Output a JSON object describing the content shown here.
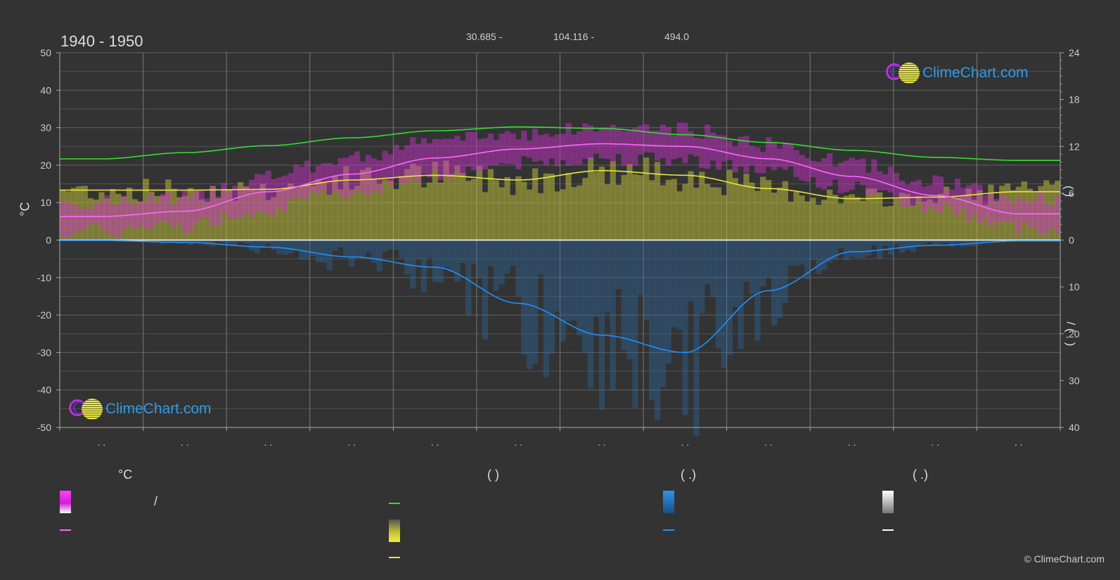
{
  "header": {
    "title": "1940 - 1950",
    "lat": "30.685 -",
    "lon": "104.116 -",
    "elevation": "494.0"
  },
  "brand": {
    "logo_text": "ClimeChart.com",
    "copyright": "© ClimeChart.com"
  },
  "axes": {
    "left_unit": "°C",
    "right_top_label": "(     )",
    "right_bottom_label": "/    (  .  )"
  },
  "legend": {
    "temp_header": "°C",
    "sun_header": "(          )",
    "rain_header": "(    .)",
    "snow_header": "(    .)",
    "slash": "/"
  },
  "colors": {
    "daylight": "#33dd33",
    "sunshine": "#e8e832",
    "temp_mean": "#ff66ff",
    "temp_band": "#e020e0",
    "precip": "#1e90ff",
    "snow": "#ffffff",
    "background": "#333333",
    "grid": "#666666",
    "brand_blue": "#2f9be9"
  },
  "chart_data": {
    "type": "line",
    "title": "1940 - 1950",
    "months": 12,
    "x_tick_labels": [
      ". .",
      ". .",
      ". .",
      ". .",
      ". .",
      ". .",
      ". .",
      ". .",
      ". .",
      ". .",
      ". .",
      ". ."
    ],
    "left_axis": {
      "label": "°C",
      "ylim": [
        -50,
        50
      ],
      "ticks": [
        50,
        40,
        30,
        20,
        10,
        0,
        -10,
        -20,
        -30,
        -40,
        -50
      ]
    },
    "right_axis_top": {
      "ylim": [
        0,
        24
      ],
      "ticks": [
        24,
        18,
        12,
        6,
        0
      ]
    },
    "right_axis_bottom": {
      "ylim": [
        0,
        40
      ],
      "ticks": [
        0,
        10,
        20,
        30,
        40
      ]
    },
    "series": [
      {
        "key": "daylight",
        "axis": "hours",
        "values": [
          10.4,
          11.2,
          12.1,
          13.1,
          14.0,
          14.5,
          14.3,
          13.5,
          12.5,
          11.5,
          10.6,
          10.2
        ]
      },
      {
        "key": "sunshine",
        "axis": "hours",
        "values": [
          6.4,
          6.4,
          6.5,
          7.7,
          8.3,
          7.7,
          8.9,
          8.3,
          6.6,
          5.3,
          5.5,
          6.2
        ]
      },
      {
        "key": "temp_mean",
        "axis": "celsius",
        "values": [
          6.3,
          7.7,
          12.9,
          17.6,
          21.9,
          24.3,
          25.7,
          25.0,
          21.7,
          17.0,
          11.9,
          7.0
        ]
      },
      {
        "key": "temp_max",
        "axis": "celsius",
        "values": [
          10.0,
          11.5,
          17.0,
          22.0,
          26.5,
          28.5,
          30.0,
          29.5,
          25.5,
          20.5,
          15.5,
          11.0
        ]
      },
      {
        "key": "temp_min",
        "axis": "celsius",
        "values": [
          2.5,
          4.0,
          8.5,
          13.0,
          17.5,
          20.5,
          22.0,
          21.5,
          18.5,
          14.0,
          8.5,
          3.5
        ]
      },
      {
        "key": "precip",
        "axis": "mm_per_day",
        "values": [
          0.1,
          0.5,
          1.5,
          3.6,
          5.8,
          13.5,
          20.3,
          24.0,
          10.8,
          2.5,
          1.1,
          0.2
        ]
      },
      {
        "key": "snow",
        "axis": "mm_per_day",
        "values": [
          0.0,
          0.0,
          0.0,
          0.0,
          0.0,
          0.0,
          0.0,
          0.0,
          0.0,
          0.0,
          0.0,
          0.0
        ]
      }
    ]
  }
}
